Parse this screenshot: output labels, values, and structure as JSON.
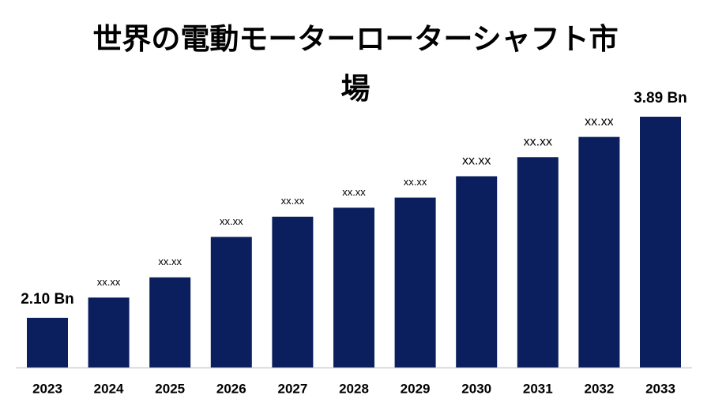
{
  "chart_data": {
    "type": "bar",
    "title": "世界の電動モーターローターシャフト市場",
    "categories": [
      "2023",
      "2024",
      "2025",
      "2026",
      "2027",
      "2028",
      "2029",
      "2030",
      "2031",
      "2032",
      "2033"
    ],
    "values": [
      2.1,
      2.28,
      2.46,
      2.82,
      3.0,
      3.08,
      3.17,
      3.36,
      3.53,
      3.71,
      3.89
    ],
    "value_labels": [
      "2.10 Bn",
      "xx.xx",
      "xx.xx",
      "xx.xx",
      "xx.xx",
      "xx.xx",
      "xx.xx",
      "xx.xx",
      "xx.xx",
      "xx.xx",
      "3.89 Bn"
    ],
    "color": "#0b1f5e"
  }
}
